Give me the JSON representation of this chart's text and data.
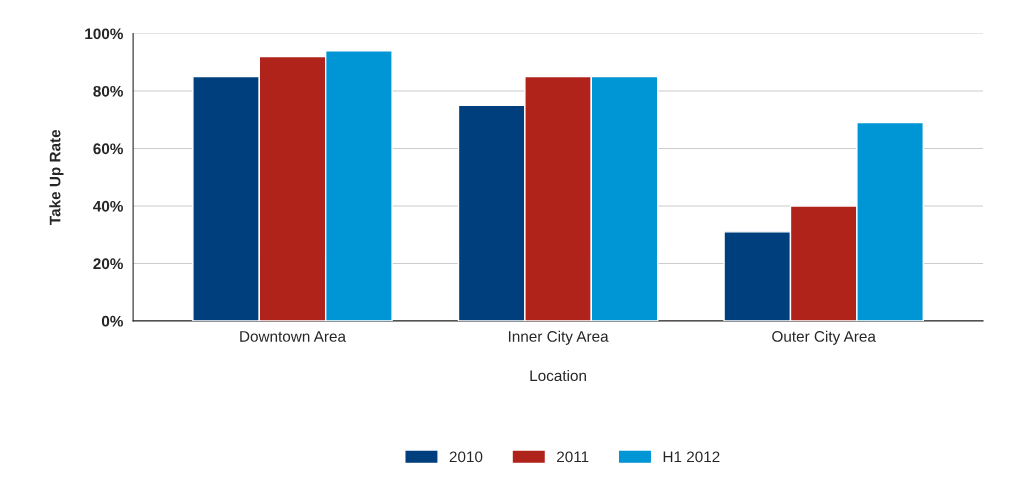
{
  "chart_data": {
    "type": "bar",
    "xlabel": "Location",
    "ylabel": "Take Up Rate",
    "categories": [
      "Downtown Area",
      "Inner City Area",
      "Outer City Area"
    ],
    "series": [
      {
        "name": "2010",
        "color": "#003f7d",
        "values": [
          85,
          75,
          31
        ]
      },
      {
        "name": "2011",
        "color": "#b0231b",
        "values": [
          92,
          85,
          40
        ]
      },
      {
        "name": "H1 2012",
        "color": "#0095d5",
        "values": [
          94,
          85,
          69
        ]
      }
    ],
    "ylim": [
      0,
      100
    ],
    "yticks": [
      {
        "value": 0,
        "label": "0%"
      },
      {
        "value": 20,
        "label": "20%"
      },
      {
        "value": 40,
        "label": "40%"
      },
      {
        "value": 60,
        "label": "60%"
      },
      {
        "value": 80,
        "label": "80%"
      },
      {
        "value": 100,
        "label": "100%"
      }
    ],
    "grid": "y",
    "legend": "bottom"
  }
}
